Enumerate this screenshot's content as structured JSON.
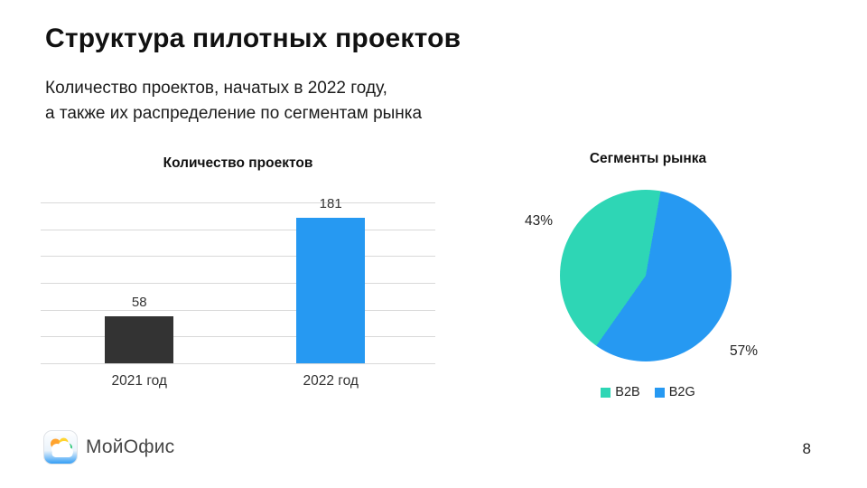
{
  "slide": {
    "title": "Структура пилотных проектов",
    "subtitle_line1": "Количество проектов, начатых в 2022 году,",
    "subtitle_line2": "а также их распределение по сегментам рынка",
    "page_number": "8",
    "logo_text": "МойОфис"
  },
  "colors": {
    "bar_dark": "#333333",
    "brand_blue": "#2699f2",
    "teal": "#2ed6b5",
    "gridline": "#d9d9d9"
  },
  "chart_data": [
    {
      "type": "bar",
      "title": "Количество проектов",
      "categories": [
        "2021 год",
        "2022 год"
      ],
      "values": [
        58,
        181
      ],
      "colors": [
        "#333333",
        "#2699f2"
      ],
      "ylim": [
        0,
        200
      ],
      "grid": true,
      "grid_intervals": 6,
      "legend": false,
      "xlabel": "",
      "ylabel": ""
    },
    {
      "type": "pie",
      "title": "Сегменты рынка",
      "labels": [
        "B2B",
        "B2G"
      ],
      "values": [
        43,
        57
      ],
      "value_labels": [
        "43%",
        "57%"
      ],
      "colors": [
        "#2ed6b5",
        "#2699f2"
      ],
      "start_angle_deg": 10,
      "legend_position": "bottom"
    }
  ]
}
